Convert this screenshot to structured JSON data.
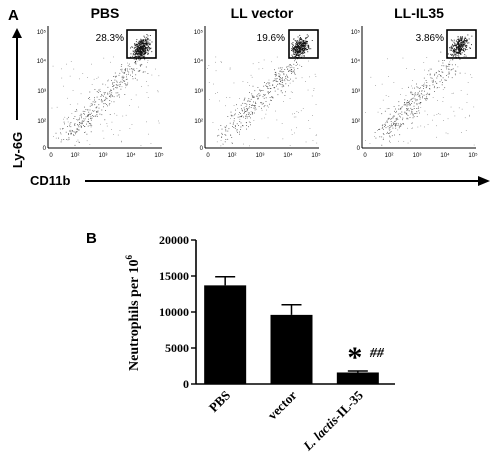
{
  "panel_a": {
    "label": "A",
    "y_axis_label": "Ly-6G",
    "x_axis_label": "CD11b",
    "tick_labels": [
      "10⁵",
      "10⁴",
      "10³",
      "10²",
      "0"
    ],
    "x_tick_labels": [
      "0",
      "10²",
      "10³",
      "10⁴",
      "10⁵"
    ],
    "plots": [
      {
        "title": "PBS",
        "gate_percent": "28.3%"
      },
      {
        "title": "LL vector",
        "gate_percent": "19.6%"
      },
      {
        "title": "LL-IL35",
        "gate_percent": "3.86%"
      }
    ]
  },
  "panel_b": {
    "label": "B"
  },
  "chart_data": {
    "type": "bar",
    "categories": [
      "PBS",
      "vector",
      "L. lactis-IL-35"
    ],
    "category_parts": [
      {
        "plain": "PBS",
        "italic": ""
      },
      {
        "plain": "vector",
        "italic": ""
      },
      {
        "italic": "L. lactis",
        "plain": "-IL-35"
      }
    ],
    "values": [
      13700,
      9600,
      1600
    ],
    "errors": [
      1200,
      1400,
      200
    ],
    "ylabel": "Neutrophils per 10",
    "ylabel_superscript": "6",
    "ylim": [
      0,
      20000
    ],
    "yticks": [
      0,
      5000,
      10000,
      15000,
      20000
    ],
    "annotations": [
      {
        "category": "L. lactis-IL-35",
        "symbol": "*",
        "text": "##"
      }
    ],
    "bar_color": "#000000",
    "grid": false
  }
}
